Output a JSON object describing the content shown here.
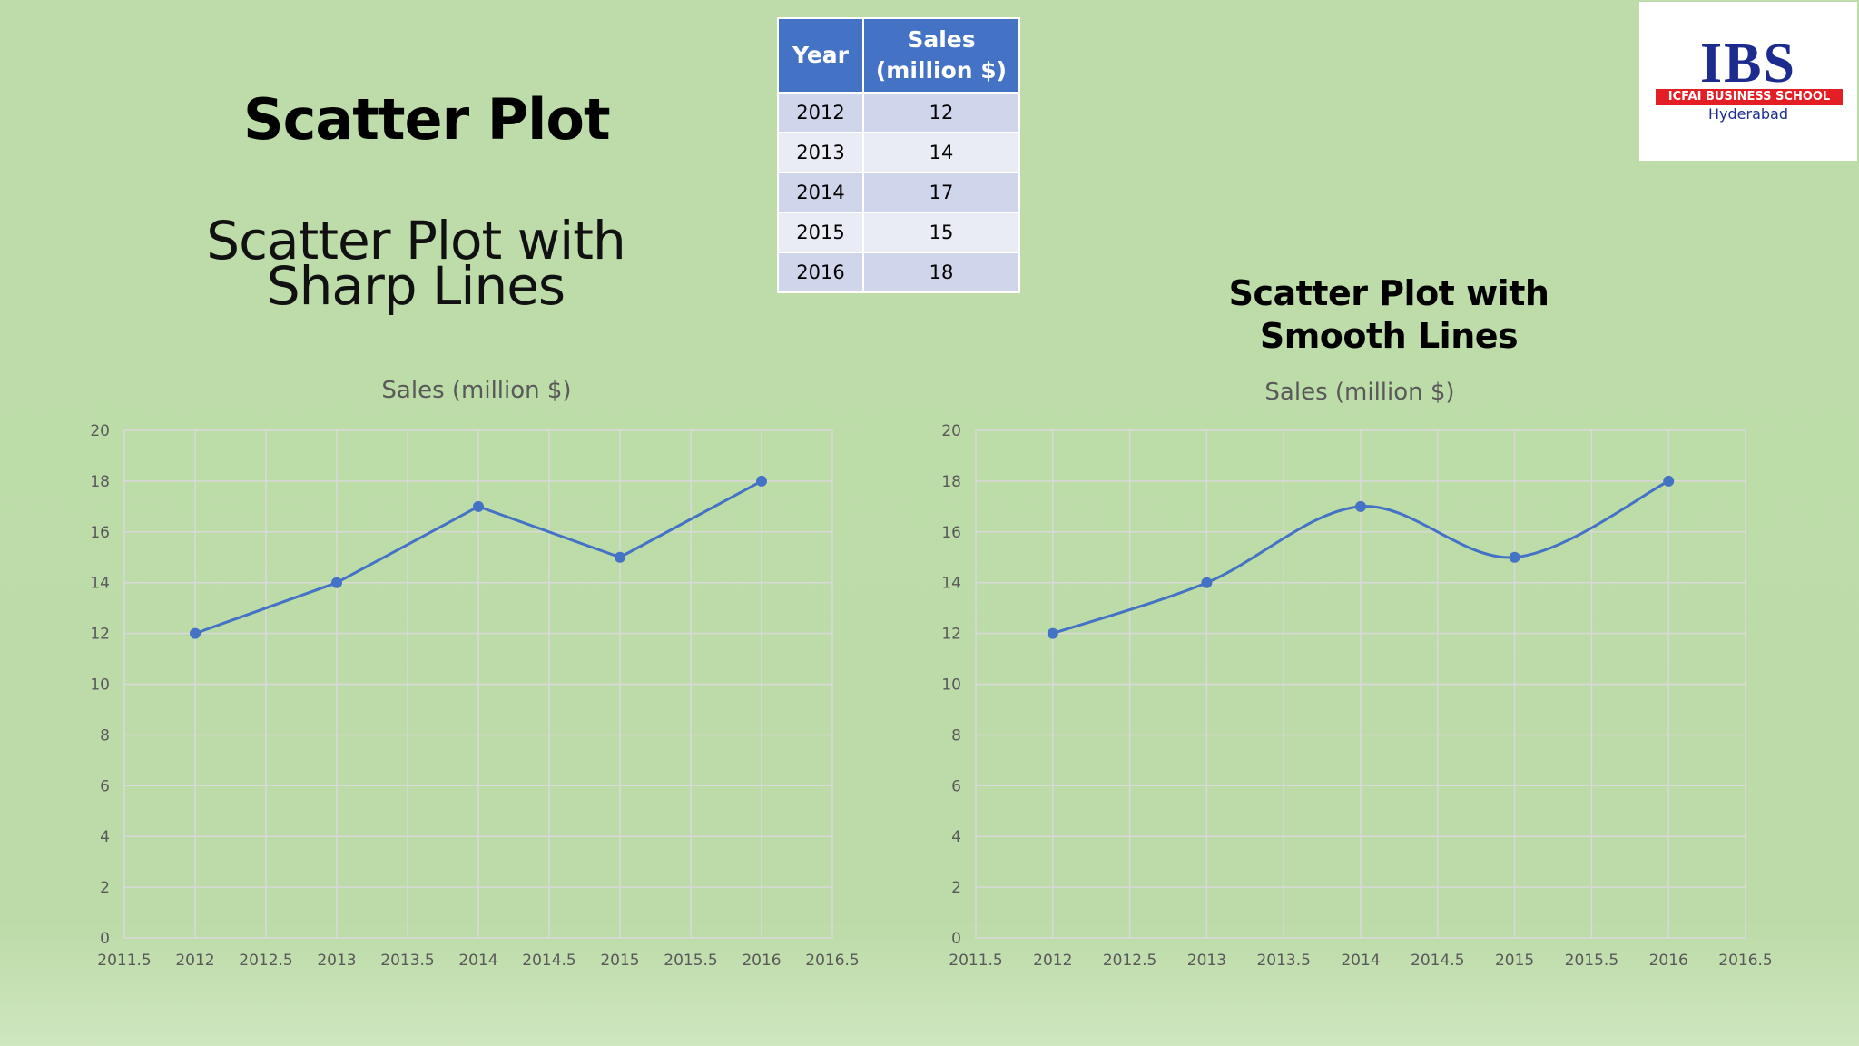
{
  "slide": {
    "title": "Scatter Plot",
    "left_subtitle_line1": "Scatter Plot with",
    "left_subtitle_line2": "Sharp Lines",
    "right_subtitle_line1": "Scatter Plot with",
    "right_subtitle_line2": "Smooth Lines"
  },
  "table": {
    "headers": [
      "Year",
      "Sales",
      "(million $)"
    ],
    "rows": [
      {
        "year": "2012",
        "sales": "12"
      },
      {
        "year": "2013",
        "sales": "14"
      },
      {
        "year": "2014",
        "sales": "17"
      },
      {
        "year": "2015",
        "sales": "15"
      },
      {
        "year": "2016",
        "sales": "18"
      }
    ]
  },
  "logo": {
    "name": "IBS",
    "band_text": "ICFAI BUSINESS SCHOOL",
    "city": "Hyderabad"
  },
  "colors": {
    "series": "#4472c4",
    "grid": "#d9d9d9",
    "axis_text": "#595959"
  },
  "chart_data": [
    {
      "type": "scatter",
      "line_style": "straight",
      "title": "Sales (million $)",
      "series": [
        {
          "name": "Sales (million $)",
          "x": [
            2012,
            2013,
            2014,
            2015,
            2016
          ],
          "y": [
            12,
            14,
            17,
            15,
            18
          ]
        }
      ],
      "xlim": [
        2011.5,
        2016.5
      ],
      "ylim": [
        0,
        20
      ],
      "xticks": [
        "2011.5",
        "2012",
        "2012.5",
        "2013",
        "2013.5",
        "2014",
        "2014.5",
        "2015",
        "2015.5",
        "2016",
        "2016.5"
      ],
      "yticks": [
        "0",
        "2",
        "4",
        "6",
        "8",
        "10",
        "12",
        "14",
        "16",
        "18",
        "20"
      ],
      "grid": true
    },
    {
      "type": "scatter",
      "line_style": "smooth",
      "title": "Sales (million $)",
      "series": [
        {
          "name": "Sales (million $)",
          "x": [
            2012,
            2013,
            2014,
            2015,
            2016
          ],
          "y": [
            12,
            14,
            17,
            15,
            18
          ]
        }
      ],
      "xlim": [
        2011.5,
        2016.5
      ],
      "ylim": [
        0,
        20
      ],
      "xticks": [
        "2011.5",
        "2012",
        "2012.5",
        "2013",
        "2013.5",
        "2014",
        "2014.5",
        "2015",
        "2015.5",
        "2016",
        "2016.5"
      ],
      "yticks": [
        "0",
        "2",
        "4",
        "6",
        "8",
        "10",
        "12",
        "14",
        "16",
        "18",
        "20"
      ],
      "grid": true
    }
  ]
}
